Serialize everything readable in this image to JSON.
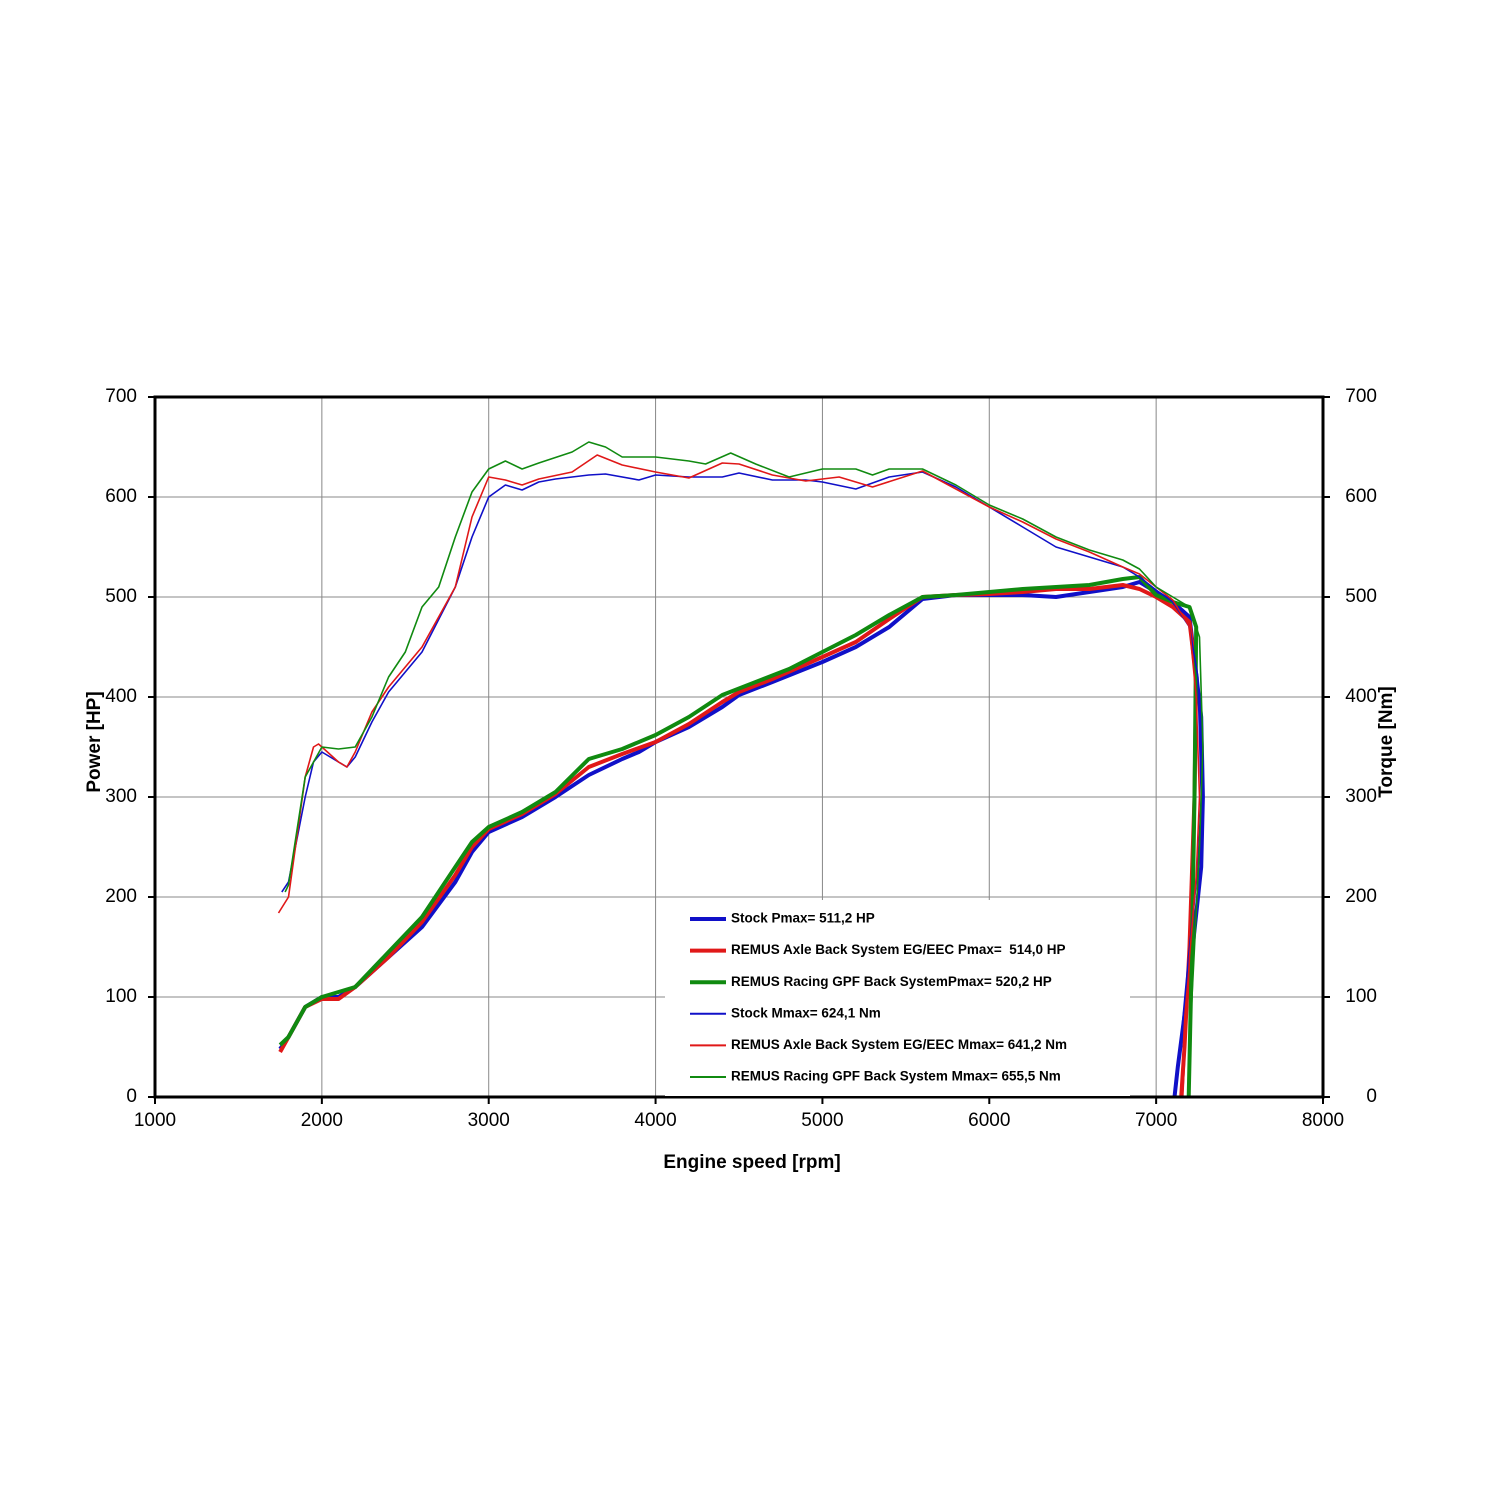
{
  "chart_data": {
    "type": "line",
    "xlabel": "Engine speed [rpm]",
    "ylabel": "Power [HP]",
    "y2label": "Torque [Nm]",
    "xlim": [
      1000,
      8000
    ],
    "xticks": [
      1000,
      2000,
      3000,
      4000,
      5000,
      6000,
      7000,
      8000
    ],
    "ylim": [
      0,
      700
    ],
    "yticks": [
      0,
      100,
      200,
      300,
      400,
      500,
      600,
      700
    ],
    "y2lim": [
      0,
      700
    ],
    "y2ticks": [
      0,
      100,
      200,
      300,
      400,
      500,
      600,
      700
    ],
    "grid": true,
    "legend": "lower right",
    "series": [
      {
        "name": "Stock Pmax= 511,2 HP",
        "color": "#1010c8",
        "x": [
          1750,
          1800,
          1900,
          2000,
          2100,
          2200,
          2400,
          2600,
          2800,
          2900,
          3000,
          3200,
          3400,
          3600,
          3800,
          3900,
          4000,
          4200,
          4400,
          4500,
          4700,
          5000,
          5200,
          5400,
          5600,
          5800,
          6000,
          6200,
          6400,
          6600,
          6800,
          6900,
          7000,
          7100,
          7200,
          7270,
          7280,
          7270,
          7200,
          7130,
          7110
        ],
        "values": [
          48,
          60,
          90,
          100,
          100,
          110,
          140,
          170,
          215,
          245,
          265,
          280,
          300,
          322,
          338,
          345,
          355,
          370,
          390,
          402,
          415,
          435,
          450,
          470,
          498,
          502,
          502,
          502,
          500,
          505,
          510,
          515,
          505,
          495,
          480,
          380,
          300,
          230,
          120,
          30,
          0
        ]
      },
      {
        "name": "REMUS Axle Back System EG/EEC Pmax=  514,0 HP",
        "color": "#e01818",
        "x": [
          1750,
          1800,
          1900,
          2000,
          2100,
          2200,
          2400,
          2600,
          2800,
          2900,
          3000,
          3200,
          3400,
          3600,
          3800,
          4000,
          4200,
          4400,
          4500,
          4700,
          5000,
          5200,
          5400,
          5600,
          5800,
          6000,
          6200,
          6400,
          6600,
          6800,
          6900,
          7000,
          7100,
          7200,
          7240,
          7230,
          7200,
          7170,
          7150
        ],
        "values": [
          45,
          60,
          90,
          98,
          98,
          110,
          140,
          175,
          222,
          250,
          268,
          283,
          303,
          330,
          343,
          355,
          373,
          395,
          405,
          418,
          440,
          455,
          478,
          500,
          502,
          503,
          505,
          508,
          508,
          512,
          508,
          500,
          490,
          475,
          420,
          300,
          150,
          50,
          0
        ]
      },
      {
        "name": "REMUS Racing GPF Back SystemPmax= 520,2 HP",
        "color": "#108a10",
        "x": [
          1750,
          1800,
          1900,
          2000,
          2200,
          2400,
          2600,
          2800,
          2900,
          3000,
          3200,
          3400,
          3600,
          3800,
          4000,
          4200,
          4400,
          4600,
          4800,
          5000,
          5200,
          5400,
          5600,
          5800,
          6000,
          6200,
          6400,
          6600,
          6800,
          6900,
          7000,
          7100,
          7200,
          7240,
          7230,
          7215,
          7195
        ],
        "values": [
          52,
          60,
          90,
          100,
          110,
          145,
          180,
          230,
          255,
          270,
          285,
          305,
          338,
          348,
          362,
          380,
          402,
          415,
          428,
          445,
          462,
          482,
          500,
          502,
          505,
          508,
          510,
          512,
          518,
          520,
          502,
          495,
          490,
          470,
          300,
          150,
          0
        ]
      },
      {
        "name": "Stock Mmax= 624,1 Nm",
        "color": "#1010c8",
        "axis": "y2",
        "x": [
          1760,
          1800,
          1900,
          1950,
          2000,
          2100,
          2150,
          2200,
          2300,
          2400,
          2600,
          2800,
          2900,
          3000,
          3100,
          3200,
          3300,
          3400,
          3600,
          3700,
          3900,
          4000,
          4200,
          4400,
          4500,
          4700,
          4900,
          5000,
          5200,
          5400,
          5600,
          5800,
          6000,
          6200,
          6400,
          6600,
          6800,
          6900,
          7000,
          7100,
          7200,
          7250,
          7270,
          7250,
          7200,
          7150,
          7110
        ],
        "values": [
          205,
          215,
          300,
          335,
          345,
          335,
          330,
          340,
          375,
          405,
          445,
          510,
          560,
          600,
          612,
          607,
          615,
          618,
          622,
          623,
          617,
          622,
          620,
          620,
          624,
          617,
          617,
          615,
          608,
          620,
          625,
          610,
          590,
          570,
          550,
          540,
          530,
          520,
          507,
          495,
          470,
          420,
          300,
          230,
          150,
          60,
          0
        ]
      },
      {
        "name": "REMUS Axle Back System EG/EEC Mmax= 641,2 Nm",
        "color": "#e01818",
        "axis": "y2",
        "x": [
          1740,
          1800,
          1900,
          1950,
          1980,
          2000,
          2100,
          2150,
          2200,
          2300,
          2400,
          2600,
          2800,
          2900,
          3000,
          3100,
          3200,
          3300,
          3500,
          3650,
          3800,
          4000,
          4200,
          4400,
          4500,
          4700,
          4900,
          5100,
          5300,
          5600,
          5800,
          6000,
          6200,
          6400,
          6600,
          6800,
          6900,
          7000,
          7100,
          7200,
          7240,
          7260,
          7240,
          7200,
          7160
        ],
        "values": [
          184,
          200,
          320,
          350,
          353,
          350,
          335,
          330,
          345,
          385,
          410,
          450,
          510,
          580,
          620,
          617,
          612,
          618,
          625,
          642,
          632,
          625,
          619,
          634,
          633,
          622,
          616,
          620,
          610,
          626,
          608,
          590,
          575,
          558,
          545,
          530,
          523,
          510,
          497,
          470,
          400,
          300,
          220,
          140,
          0
        ]
      },
      {
        "name": "REMUS Racing GPF Back System Mmax= 655,5 Nm",
        "color": "#108a10",
        "axis": "y2",
        "x": [
          1780,
          1800,
          1900,
          2000,
          2100,
          2200,
          2300,
          2400,
          2500,
          2600,
          2700,
          2800,
          2900,
          3000,
          3100,
          3200,
          3300,
          3500,
          3600,
          3700,
          3800,
          4000,
          4200,
          4300,
          4450,
          4600,
          4800,
          5000,
          5200,
          5300,
          5400,
          5600,
          5800,
          6000,
          6200,
          6400,
          6600,
          6800,
          6900,
          7000,
          7100,
          7200,
          7260,
          7280,
          7260,
          7230,
          7200,
          7190
        ],
        "values": [
          205,
          212,
          320,
          350,
          348,
          350,
          380,
          420,
          445,
          490,
          510,
          560,
          605,
          628,
          636,
          628,
          634,
          645,
          655,
          650,
          640,
          640,
          636,
          633,
          644,
          633,
          620,
          628,
          628,
          622,
          628,
          628,
          612,
          592,
          578,
          560,
          547,
          537,
          528,
          510,
          500,
          490,
          460,
          350,
          250,
          150,
          50,
          0
        ]
      }
    ]
  }
}
